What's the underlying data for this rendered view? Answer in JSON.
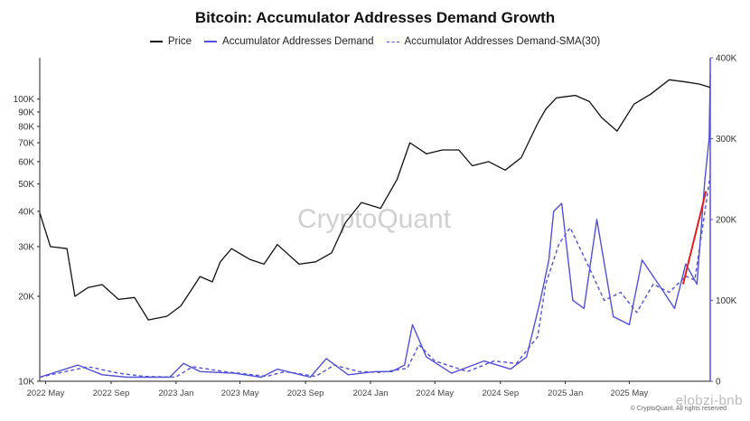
{
  "chart_data": {
    "type": "line",
    "title": "Bitcoin: Accumulator Addresses Demand Growth",
    "legend_placement": "top-center",
    "grid": false,
    "x_labels": [
      "2022 May",
      "2022 Sep",
      "2023 Jan",
      "2023 May",
      "2023 Sep",
      "2024 Jan",
      "2024 May",
      "2024 Sep",
      "2025 Jan",
      "2025 May"
    ],
    "left_axis": {
      "scale": "log",
      "ticks": [
        "10K",
        "20K",
        "30K",
        "40K",
        "50K",
        "60K",
        "70K",
        "80K",
        "90K",
        "100K"
      ],
      "ylim": [
        10000,
        140000
      ]
    },
    "right_axis": {
      "scale": "linear",
      "ticks": [
        "0",
        "100K",
        "200K",
        "300K",
        "400K"
      ],
      "ylim": [
        0,
        400000
      ]
    },
    "series": [
      {
        "name": "Price",
        "color": "#111111",
        "style": "solid",
        "axis": "left",
        "x": [
          "2022-04-20",
          "2022-05-10",
          "2022-06-10",
          "2022-06-25",
          "2022-07-20",
          "2022-08-15",
          "2022-09-15",
          "2022-10-15",
          "2022-11-10",
          "2022-12-15",
          "2023-01-10",
          "2023-02-15",
          "2023-03-10",
          "2023-03-25",
          "2023-04-15",
          "2023-05-20",
          "2023-06-15",
          "2023-07-10",
          "2023-08-20",
          "2023-09-20",
          "2023-10-20",
          "2023-11-15",
          "2023-12-15",
          "2024-01-20",
          "2024-02-20",
          "2024-03-15",
          "2024-04-15",
          "2024-05-15",
          "2024-06-15",
          "2024-07-10",
          "2024-08-10",
          "2024-09-10",
          "2024-10-10",
          "2024-11-10",
          "2024-11-25",
          "2024-12-15",
          "2025-01-20",
          "2025-02-15",
          "2025-03-10",
          "2025-04-08",
          "2025-05-10",
          "2025-06-10",
          "2025-07-15",
          "2025-08-15",
          "2025-09-10",
          "2025-09-30"
        ],
        "values": [
          39500,
          30000,
          29500,
          20000,
          21500,
          22000,
          19500,
          19800,
          16500,
          17000,
          18500,
          23500,
          22500,
          26500,
          29500,
          27000,
          26000,
          30500,
          26000,
          26500,
          28500,
          36500,
          43000,
          41000,
          52000,
          70000,
          64000,
          66000,
          66000,
          58000,
          60000,
          56000,
          62000,
          82000,
          92000,
          101000,
          103000,
          98000,
          86000,
          77000,
          96000,
          104000,
          117000,
          115000,
          113000,
          110000
        ]
      },
      {
        "name": "Accumulator Addresses Demand",
        "color": "#5050d8",
        "style": "solid",
        "axis": "right",
        "x": [
          "2022-04-20",
          "2022-07-01",
          "2022-08-15",
          "2022-10-01",
          "2022-12-20",
          "2023-01-15",
          "2023-02-15",
          "2023-04-20",
          "2023-06-10",
          "2023-07-10",
          "2023-09-10",
          "2023-10-10",
          "2023-11-20",
          "2024-01-10",
          "2024-02-10",
          "2024-03-05",
          "2024-03-20",
          "2024-04-15",
          "2024-06-01",
          "2024-08-01",
          "2024-09-20",
          "2024-10-20",
          "2024-11-15",
          "2024-12-01",
          "2024-12-10",
          "2024-12-25",
          "2025-01-15",
          "2025-02-05",
          "2025-03-01",
          "2025-04-01",
          "2025-05-01",
          "2025-05-25",
          "2025-06-25",
          "2025-07-25",
          "2025-08-15",
          "2025-09-05",
          "2025-09-20",
          "2025-09-28",
          "2025-09-30"
        ],
        "values": [
          5000,
          20000,
          8000,
          5000,
          5000,
          22000,
          12000,
          10000,
          5000,
          15000,
          5000,
          28000,
          8000,
          12000,
          12000,
          20000,
          70000,
          30000,
          10000,
          25000,
          15000,
          30000,
          100000,
          150000,
          210000,
          220000,
          100000,
          90000,
          200000,
          80000,
          70000,
          150000,
          120000,
          90000,
          145000,
          120000,
          250000,
          300000,
          380000
        ]
      },
      {
        "name": "Accumulator Addresses Demand-SMA(30)",
        "color": "#5050d8",
        "style": "dashed",
        "axis": "right",
        "x": [
          "2022-04-20",
          "2022-07-20",
          "2022-09-15",
          "2022-11-01",
          "2022-12-31",
          "2023-02-01",
          "2023-04-01",
          "2023-06-20",
          "2023-07-25",
          "2023-09-20",
          "2023-10-25",
          "2023-12-10",
          "2024-01-20",
          "2024-03-10",
          "2024-04-01",
          "2024-05-01",
          "2024-07-01",
          "2024-08-20",
          "2024-10-01",
          "2024-11-10",
          "2024-11-25",
          "2024-12-20",
          "2025-01-10",
          "2025-02-15",
          "2025-03-15",
          "2025-04-15",
          "2025-05-15",
          "2025-06-15",
          "2025-07-15",
          "2025-08-15",
          "2025-09-01",
          "2025-09-30"
        ],
        "values": [
          5000,
          18000,
          10000,
          6000,
          5000,
          18000,
          12000,
          6000,
          12000,
          6000,
          20000,
          12000,
          11000,
          16000,
          45000,
          25000,
          12000,
          25000,
          22000,
          55000,
          120000,
          170000,
          190000,
          140000,
          100000,
          110000,
          85000,
          120000,
          110000,
          130000,
          125000,
          255000
        ]
      }
    ],
    "annotations": [
      "CryptoQuant"
    ]
  },
  "footer": "© CryptoQuant. All rights reserved",
  "corner_mark": "elobzi-bnb"
}
